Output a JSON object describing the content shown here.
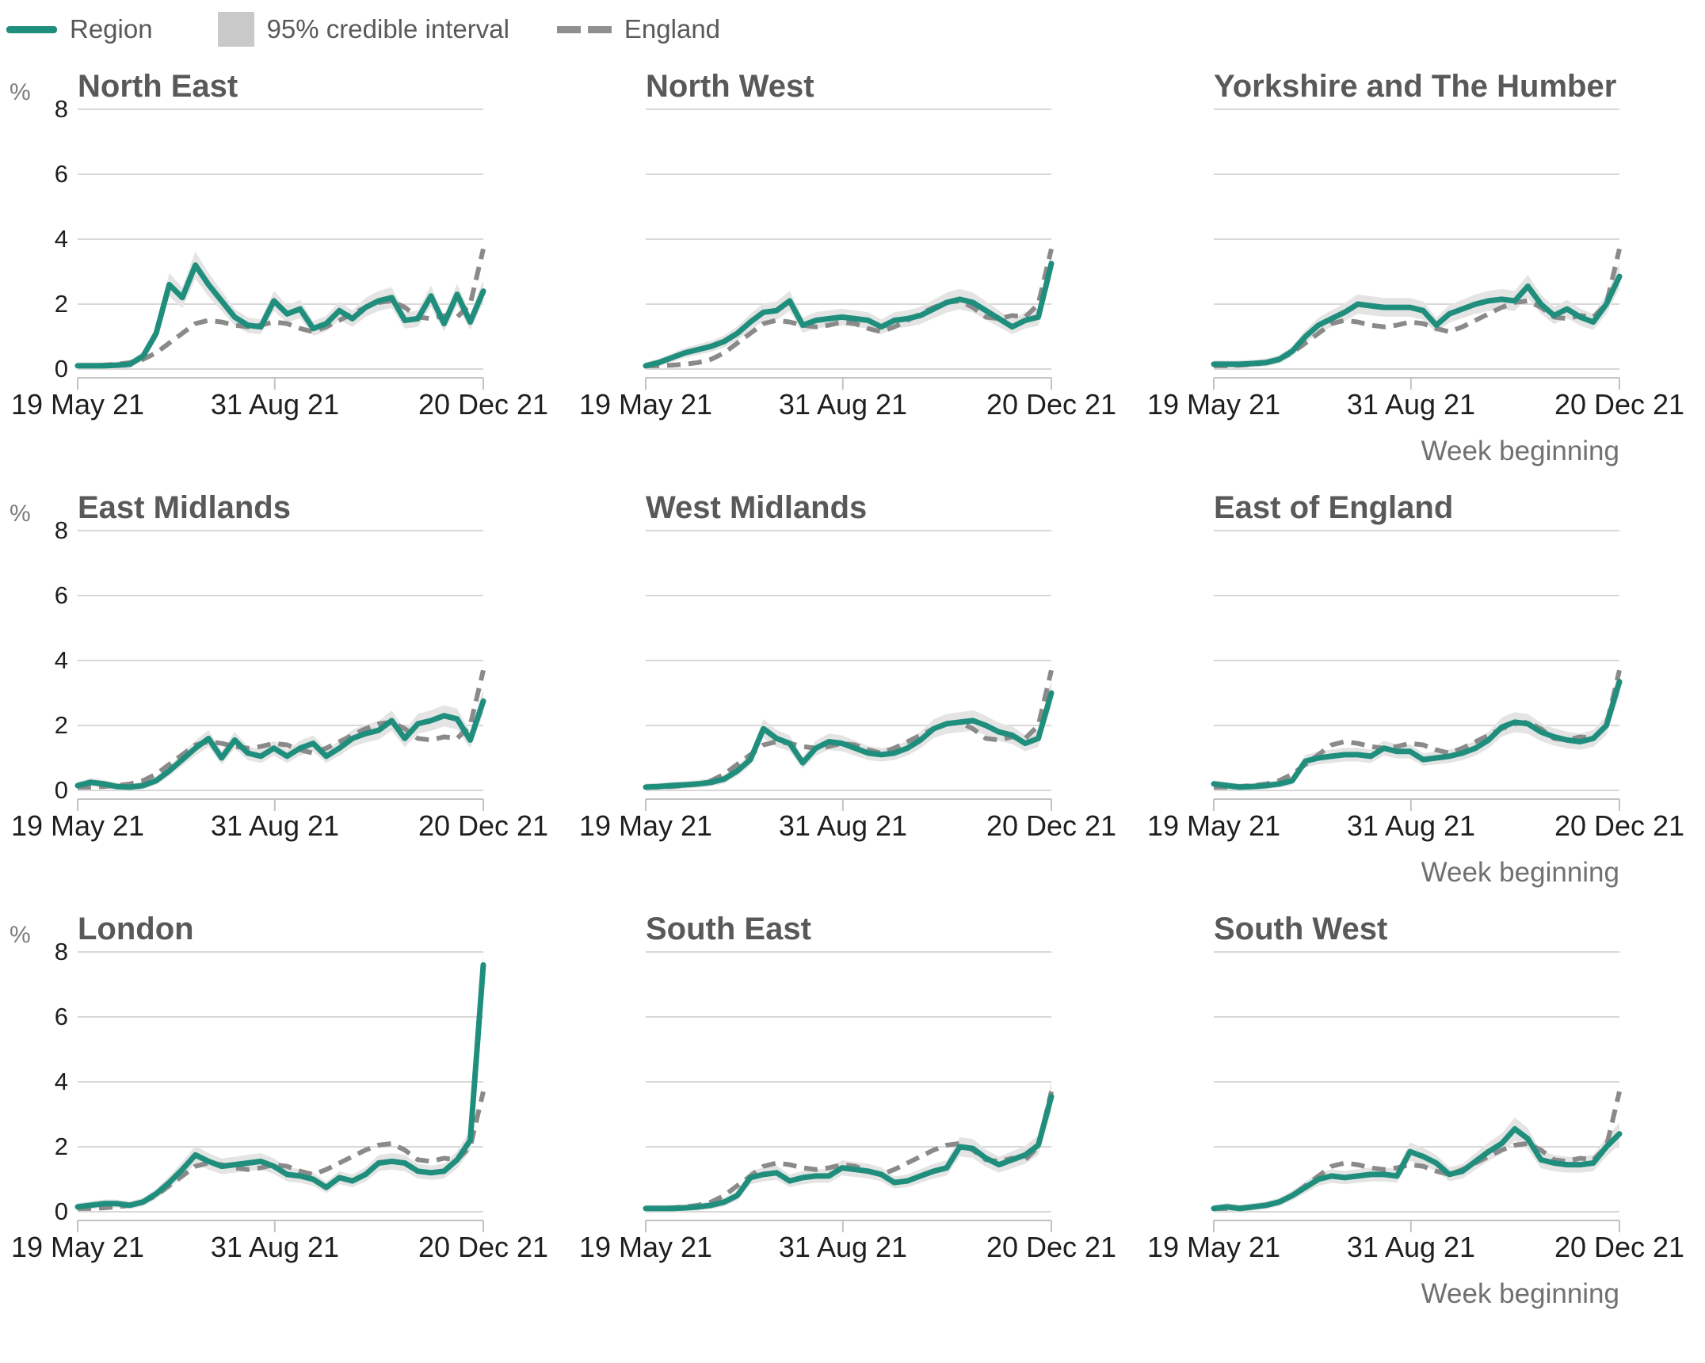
{
  "legend": {
    "region_label": "Region",
    "ci_label": "95% credible interval",
    "england_label": "England"
  },
  "axes": {
    "y_unit": "%",
    "y_ticks": [
      8,
      6,
      4,
      2,
      0
    ],
    "x_axis_title": "Week beginning"
  },
  "colors": {
    "region": "#208e7d",
    "england": "#8a8a8a",
    "ci_band": "#e4e4e4",
    "ci_legend": "#c9c9c9",
    "gridline": "#d8d8d8",
    "axis": "#c2c2c2",
    "title_text": "#595959",
    "tick_text": "#1f1f1f",
    "muted_text": "#707070"
  },
  "chart_data": {
    "type": "line",
    "unit": "%",
    "ylim": [
      0,
      8
    ],
    "y_ticks": [
      0,
      2,
      4,
      6,
      8
    ],
    "x_tick_labels": [
      "19 May 21",
      "31 Aug 21",
      "20 Dec 21"
    ],
    "x_tick_positions": [
      0,
      0.486,
      1
    ],
    "xlabel": "Week beginning",
    "x_description": "weekly points from week beginning 19 May 21 to 20 Dec 21",
    "points_per_series": 32,
    "legend_position": "top-left",
    "grid": "horizontal only",
    "ci_half_width_formula": "min(0.45, 0.10 + 0.10 * value)",
    "england": [
      0.1,
      0.1,
      0.12,
      0.15,
      0.2,
      0.3,
      0.5,
      0.8,
      1.1,
      1.4,
      1.5,
      1.45,
      1.35,
      1.3,
      1.35,
      1.45,
      1.4,
      1.25,
      1.15,
      1.3,
      1.5,
      1.7,
      1.9,
      2.05,
      2.1,
      1.9,
      1.6,
      1.55,
      1.65,
      1.6,
      2.0,
      3.7
    ],
    "regions": [
      {
        "name": "North East",
        "values": [
          0.1,
          0.1,
          0.1,
          0.12,
          0.15,
          0.4,
          1.1,
          2.6,
          2.2,
          3.2,
          2.6,
          2.1,
          1.6,
          1.35,
          1.3,
          2.1,
          1.7,
          1.85,
          1.25,
          1.4,
          1.8,
          1.55,
          1.9,
          2.1,
          2.2,
          1.5,
          1.55,
          2.25,
          1.4,
          2.3,
          1.45,
          2.4
        ]
      },
      {
        "name": "North West",
        "values": [
          0.1,
          0.2,
          0.35,
          0.5,
          0.6,
          0.7,
          0.85,
          1.1,
          1.45,
          1.75,
          1.8,
          2.1,
          1.35,
          1.5,
          1.55,
          1.6,
          1.55,
          1.5,
          1.3,
          1.5,
          1.55,
          1.65,
          1.85,
          2.05,
          2.15,
          2.05,
          1.8,
          1.55,
          1.3,
          1.5,
          1.6,
          3.25
        ]
      },
      {
        "name": "Yorkshire and The Humber",
        "values": [
          0.15,
          0.15,
          0.15,
          0.17,
          0.2,
          0.3,
          0.55,
          1.0,
          1.35,
          1.55,
          1.75,
          2.0,
          1.95,
          1.9,
          1.9,
          1.9,
          1.8,
          1.35,
          1.7,
          1.85,
          2.0,
          2.1,
          2.15,
          2.1,
          2.55,
          2.0,
          1.65,
          1.85,
          1.6,
          1.45,
          2.0,
          2.85
        ]
      },
      {
        "name": "East Midlands",
        "values": [
          0.15,
          0.25,
          0.2,
          0.12,
          0.1,
          0.15,
          0.3,
          0.6,
          0.95,
          1.3,
          1.6,
          1.0,
          1.55,
          1.15,
          1.05,
          1.3,
          1.05,
          1.3,
          1.45,
          1.05,
          1.3,
          1.6,
          1.75,
          1.85,
          2.15,
          1.6,
          2.05,
          2.15,
          2.3,
          2.2,
          1.55,
          2.75
        ]
      },
      {
        "name": "West Midlands",
        "values": [
          0.1,
          0.12,
          0.15,
          0.17,
          0.2,
          0.25,
          0.35,
          0.6,
          0.95,
          1.9,
          1.6,
          1.45,
          0.85,
          1.3,
          1.5,
          1.45,
          1.3,
          1.15,
          1.1,
          1.15,
          1.3,
          1.55,
          1.9,
          2.05,
          2.1,
          2.15,
          2.0,
          1.8,
          1.7,
          1.45,
          1.6,
          3.0
        ]
      },
      {
        "name": "East of England",
        "values": [
          0.2,
          0.15,
          0.1,
          0.12,
          0.15,
          0.2,
          0.3,
          0.9,
          1.0,
          1.05,
          1.1,
          1.1,
          1.05,
          1.3,
          1.2,
          1.2,
          0.95,
          1.0,
          1.05,
          1.15,
          1.3,
          1.55,
          1.95,
          2.1,
          2.05,
          1.8,
          1.65,
          1.55,
          1.5,
          1.6,
          2.0,
          3.35
        ]
      },
      {
        "name": "London",
        "values": [
          0.15,
          0.2,
          0.25,
          0.25,
          0.2,
          0.3,
          0.55,
          0.9,
          1.3,
          1.75,
          1.55,
          1.4,
          1.45,
          1.5,
          1.55,
          1.4,
          1.15,
          1.1,
          1.0,
          0.75,
          1.05,
          0.95,
          1.15,
          1.5,
          1.55,
          1.5,
          1.25,
          1.2,
          1.25,
          1.6,
          2.2,
          7.6
        ]
      },
      {
        "name": "South East",
        "values": [
          0.1,
          0.1,
          0.1,
          0.12,
          0.15,
          0.2,
          0.3,
          0.5,
          1.05,
          1.15,
          1.2,
          0.95,
          1.05,
          1.1,
          1.1,
          1.35,
          1.3,
          1.25,
          1.15,
          0.9,
          0.95,
          1.1,
          1.25,
          1.35,
          2.0,
          1.95,
          1.65,
          1.45,
          1.6,
          1.75,
          2.05,
          3.55
        ]
      },
      {
        "name": "South West",
        "values": [
          0.1,
          0.15,
          0.1,
          0.15,
          0.2,
          0.3,
          0.5,
          0.75,
          1.0,
          1.1,
          1.05,
          1.1,
          1.15,
          1.15,
          1.1,
          1.85,
          1.7,
          1.5,
          1.15,
          1.25,
          1.55,
          1.85,
          2.1,
          2.55,
          2.25,
          1.6,
          1.5,
          1.45,
          1.45,
          1.5,
          2.0,
          2.4
        ]
      }
    ]
  }
}
